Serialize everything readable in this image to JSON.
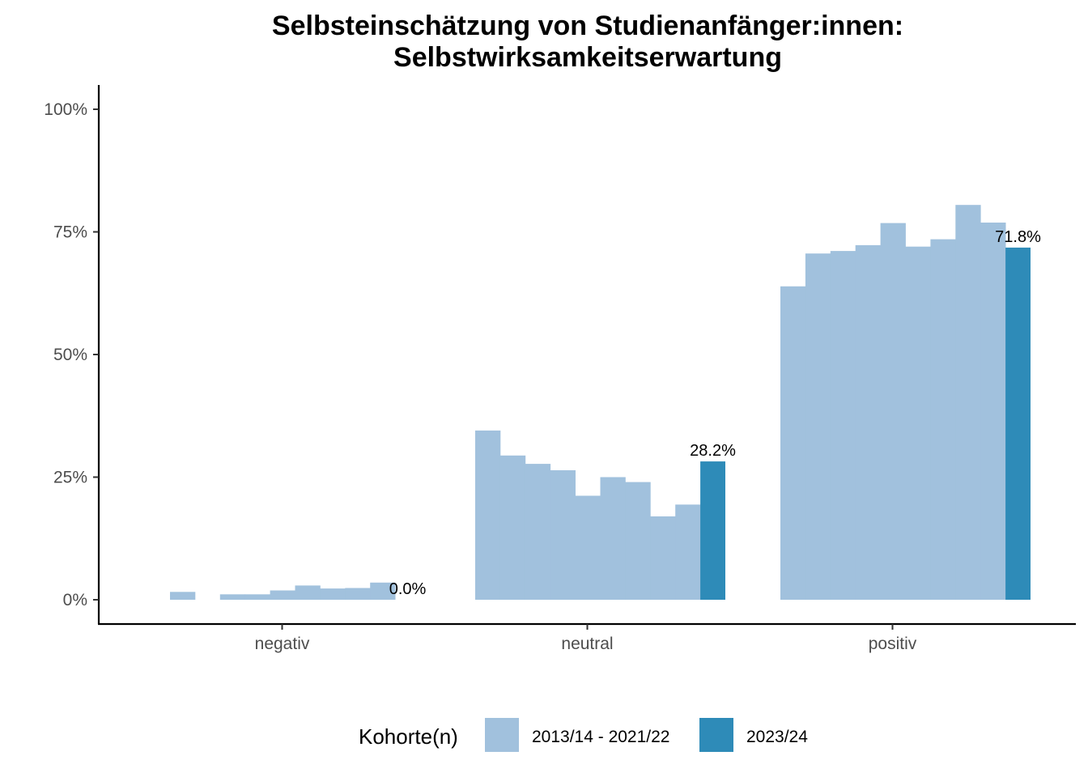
{
  "chart_data": {
    "type": "bar",
    "title_lines": [
      "Selbsteinschätzung von Studienanfänger:innen:",
      "Selbstwirksamkeitserwartung"
    ],
    "xlabel": "",
    "ylabel": "",
    "ylim": [
      0,
      1
    ],
    "yticks": [
      0,
      0.25,
      0.5,
      0.75,
      1.0
    ],
    "ytick_labels": [
      "0%",
      "25%",
      "50%",
      "75%",
      "100%"
    ],
    "categories": [
      "negativ",
      "neutral",
      "positiv"
    ],
    "grid": false,
    "legend": {
      "title": "Kohorte(n)",
      "position": "bottom",
      "entries": [
        {
          "label": "2013/14 - 2021/22",
          "color": "#a1c1dd"
        },
        {
          "label": "2023/24",
          "color": "#2e8bb8"
        }
      ]
    },
    "series": [
      {
        "name": "2013/14 - 2021/22",
        "color": "#a1c1dd",
        "values_by_category": [
          [
            0.016,
            null,
            0.011,
            0.011,
            0.019,
            0.029,
            0.023,
            0.024,
            0.035
          ],
          [
            0.345,
            0.294,
            0.277,
            0.264,
            0.212,
            0.25,
            0.24,
            0.17,
            0.194
          ],
          [
            0.639,
            0.706,
            0.711,
            0.723,
            0.768,
            0.72,
            0.735,
            0.805,
            0.769
          ]
        ]
      },
      {
        "name": "2023/24",
        "color": "#2e8bb8",
        "values": [
          0.0,
          0.282,
          0.718
        ],
        "labels": [
          "0.0%",
          "28.2%",
          "71.8%"
        ]
      }
    ]
  }
}
